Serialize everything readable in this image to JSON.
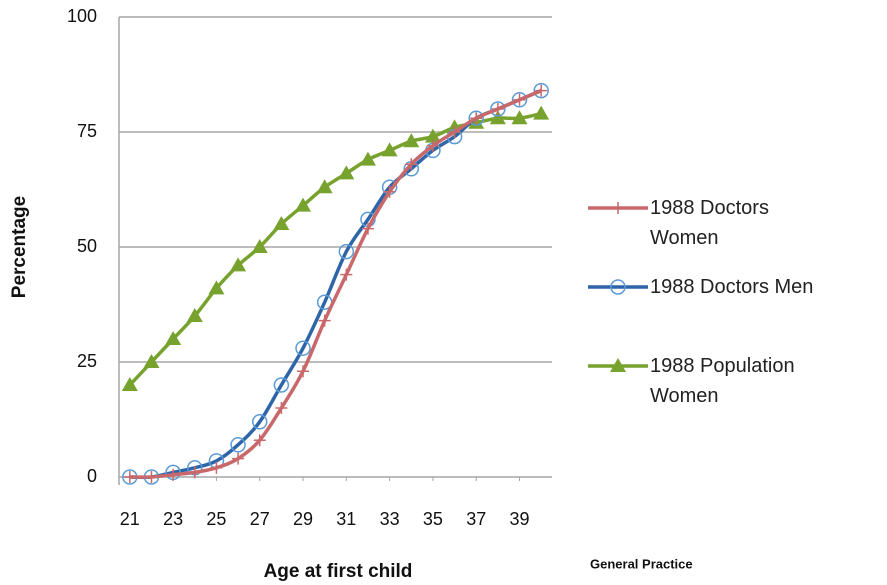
{
  "chart_data": {
    "type": "line",
    "x_label": "Age at first child",
    "y_label": "Percentage",
    "source": "General Practice",
    "x": [
      21,
      22,
      23,
      24,
      25,
      26,
      27,
      28,
      29,
      30,
      31,
      32,
      33,
      34,
      35,
      36,
      37,
      38,
      39,
      40
    ],
    "series": [
      {
        "name": "1988 Doctors Women",
        "color": "#c9686a",
        "marker": "plus",
        "values": [
          0,
          0,
          0.5,
          1,
          2,
          4,
          8,
          15,
          23,
          34,
          44,
          54,
          62,
          68,
          72,
          75,
          78,
          80,
          82,
          84
        ]
      },
      {
        "name": "1988 Doctors Men",
        "color": "#2e64a8",
        "marker": "circle",
        "values": [
          0,
          0,
          1,
          2,
          3.5,
          7,
          12,
          20,
          28,
          38,
          49,
          56,
          63,
          67,
          71,
          74,
          78,
          80,
          82,
          84
        ]
      },
      {
        "name": "1988 Population Women",
        "color": "#77a22e",
        "marker": "triangle",
        "values": [
          20,
          25,
          30,
          35,
          41,
          46,
          50,
          55,
          59,
          63,
          66,
          69,
          71,
          73,
          74,
          76,
          77,
          78,
          78,
          79
        ]
      }
    ],
    "xlim": [
      20.5,
      40.5
    ],
    "xticks": [
      21,
      23,
      25,
      27,
      29,
      31,
      33,
      35,
      37,
      39
    ],
    "ylim": [
      0,
      100
    ],
    "yticks": [
      0,
      25,
      50,
      75,
      100
    ],
    "grid": true,
    "legend": "right"
  }
}
